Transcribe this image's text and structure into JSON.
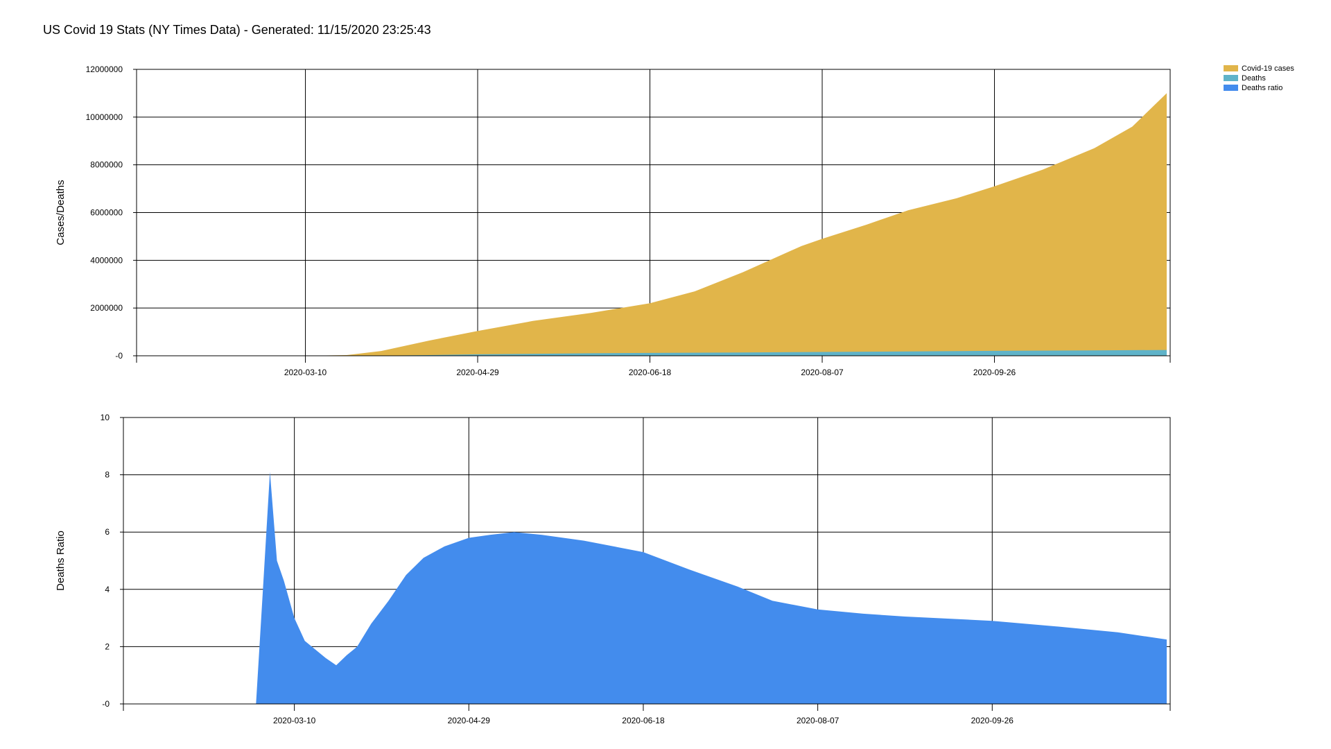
{
  "title": "US Covid 19 Stats (NY Times Data) - Generated: 11/15/2020 23:25:43",
  "colors": {
    "cases": "#E1B54A",
    "deaths": "#5FB3C9",
    "ratio": "#438CED",
    "grid": "#000000"
  },
  "legend": [
    {
      "label": "Covid-19 cases",
      "color": "#E1B54A"
    },
    {
      "label": "Deaths",
      "color": "#5FB3C9"
    },
    {
      "label": "Deaths ratio",
      "color": "#438CED"
    }
  ],
  "chart_data": [
    {
      "type": "area",
      "ylabel": "Cases/Deaths",
      "xlabel": "",
      "x_start": "2020-01-21",
      "x_end": "2020-11-15",
      "xticks": [
        "2020-03-10",
        "2020-04-29",
        "2020-06-18",
        "2020-08-07",
        "2020-09-26"
      ],
      "ylim": [
        0,
        12000000
      ],
      "yticks": [
        "-0",
        "2000000",
        "4000000",
        "6000000",
        "8000000",
        "10000000",
        "12000000"
      ],
      "grid": true,
      "legend_position": "top-right",
      "series": [
        {
          "name": "Covid-19 cases",
          "x": [
            "2020-03-10",
            "2020-03-22",
            "2020-04-01",
            "2020-04-15",
            "2020-04-29",
            "2020-05-15",
            "2020-06-01",
            "2020-06-18",
            "2020-07-01",
            "2020-07-15",
            "2020-08-01",
            "2020-08-07",
            "2020-08-20",
            "2020-09-01",
            "2020-09-15",
            "2020-09-26",
            "2020-10-10",
            "2020-10-25",
            "2020-11-05",
            "2020-11-15"
          ],
          "values": [
            1000,
            30000,
            200000,
            640000,
            1040000,
            1460000,
            1800000,
            2200000,
            2700000,
            3500000,
            4600000,
            4900000,
            5500000,
            6100000,
            6600000,
            7100000,
            7800000,
            8700000,
            9600000,
            11000000
          ]
        },
        {
          "name": "Deaths",
          "x": [
            "2020-03-10",
            "2020-04-01",
            "2020-04-15",
            "2020-04-29",
            "2020-06-01",
            "2020-06-18",
            "2020-07-15",
            "2020-08-07",
            "2020-09-01",
            "2020-09-26",
            "2020-10-25",
            "2020-11-15"
          ],
          "values": [
            30,
            5000,
            30000,
            60000,
            105000,
            118000,
            137000,
            160000,
            183000,
            205000,
            225000,
            245000
          ]
        }
      ]
    },
    {
      "type": "area",
      "ylabel": "Deaths Ratio",
      "xlabel": "",
      "x_start": "2020-01-21",
      "x_end": "2020-11-15",
      "xticks": [
        "2020-03-10",
        "2020-04-29",
        "2020-06-18",
        "2020-08-07",
        "2020-09-26"
      ],
      "ylim": [
        0,
        10
      ],
      "yticks": [
        "-0",
        "2",
        "4",
        "6",
        "8",
        "10"
      ],
      "grid": true,
      "series": [
        {
          "name": "Deaths ratio",
          "x": [
            "2020-02-28",
            "2020-03-01",
            "2020-03-03",
            "2020-03-05",
            "2020-03-07",
            "2020-03-10",
            "2020-03-13",
            "2020-03-16",
            "2020-03-19",
            "2020-03-22",
            "2020-03-25",
            "2020-03-28",
            "2020-04-01",
            "2020-04-06",
            "2020-04-11",
            "2020-04-16",
            "2020-04-22",
            "2020-04-29",
            "2020-05-05",
            "2020-05-12",
            "2020-05-20",
            "2020-06-01",
            "2020-06-18",
            "2020-07-01",
            "2020-07-15",
            "2020-07-25",
            "2020-08-07",
            "2020-08-20",
            "2020-09-01",
            "2020-09-26",
            "2020-10-15",
            "2020-11-01",
            "2020-11-15"
          ],
          "values": [
            0,
            4.0,
            8.1,
            5.0,
            4.3,
            3.0,
            2.2,
            1.9,
            1.6,
            1.35,
            1.7,
            2.0,
            2.8,
            3.6,
            4.5,
            5.1,
            5.5,
            5.8,
            5.9,
            6.0,
            5.9,
            5.7,
            5.3,
            4.7,
            4.1,
            3.6,
            3.3,
            3.15,
            3.05,
            2.9,
            2.7,
            2.5,
            2.25
          ]
        }
      ]
    }
  ]
}
